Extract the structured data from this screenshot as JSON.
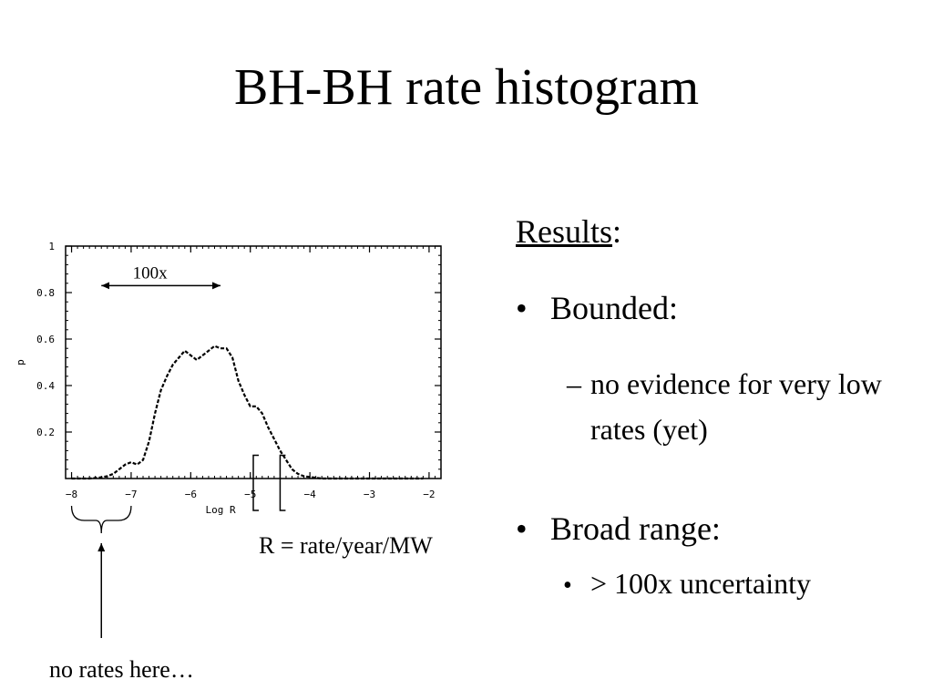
{
  "slide": {
    "title": "BH-BH rate histogram"
  },
  "results": {
    "heading": "Results",
    "heading_suffix": ":",
    "bullets": [
      {
        "marker": "•",
        "text": "Bounded:",
        "sub_marker": "–",
        "sub_text": "no evidence for very low rates (yet)"
      },
      {
        "marker": "•",
        "text": "Broad range:",
        "sub_marker": "•",
        "sub_text": "> 100x uncertainty"
      }
    ]
  },
  "annotations": {
    "span_label": "100x",
    "r_definition": "R = rate/year/MW",
    "no_rates": "no rates here…"
  },
  "chart_data": {
    "type": "line",
    "title": "",
    "xlabel": "Log R",
    "ylabel": "p",
    "xlim": [
      -8.1,
      -1.8
    ],
    "ylim": [
      0,
      1
    ],
    "x_ticks": [
      -8,
      -7,
      -6,
      -5,
      -4,
      -3,
      -2
    ],
    "x_tick_labels": [
      "−8",
      "−7",
      "−6",
      "−5",
      "−4",
      "−3",
      "−2"
    ],
    "y_ticks": [
      0.2,
      0.4,
      0.6,
      0.8,
      1
    ],
    "y_tick_labels": [
      "0.2",
      "0.4",
      "0.6",
      "0.8",
      "1"
    ],
    "line_style": "dashed",
    "series": [
      {
        "x": [
          -8.0,
          -7.7,
          -7.5,
          -7.4,
          -7.3,
          -7.2,
          -7.1,
          -7.0,
          -6.9,
          -6.8,
          -6.7,
          -6.6,
          -6.5,
          -6.4,
          -6.3,
          -6.2,
          -6.1,
          -6.0,
          -5.9,
          -5.8,
          -5.7,
          -5.6,
          -5.5,
          -5.4,
          -5.3,
          -5.2,
          -5.1,
          -5.0,
          -4.9,
          -4.8,
          -4.7,
          -4.6,
          -4.5,
          -4.4,
          -4.3,
          -4.2,
          -4.1,
          -3.8,
          -3.5,
          -3.0,
          -2.5,
          -2.1
        ],
        "y": [
          0.0,
          0.0,
          0.005,
          0.01,
          0.02,
          0.04,
          0.06,
          0.07,
          0.06,
          0.08,
          0.16,
          0.28,
          0.38,
          0.44,
          0.49,
          0.52,
          0.55,
          0.53,
          0.51,
          0.53,
          0.55,
          0.57,
          0.56,
          0.56,
          0.52,
          0.42,
          0.36,
          0.31,
          0.31,
          0.28,
          0.22,
          0.17,
          0.12,
          0.08,
          0.04,
          0.02,
          0.01,
          0.0,
          0.0,
          0.0,
          0.0,
          0.0
        ]
      }
    ],
    "markers": {
      "span_arrow_x": [
        -7.5,
        -5.5
      ],
      "bracket_x": -4.95,
      "bracket_open_x": -4.5,
      "brace_x": [
        -8,
        -7
      ]
    }
  }
}
